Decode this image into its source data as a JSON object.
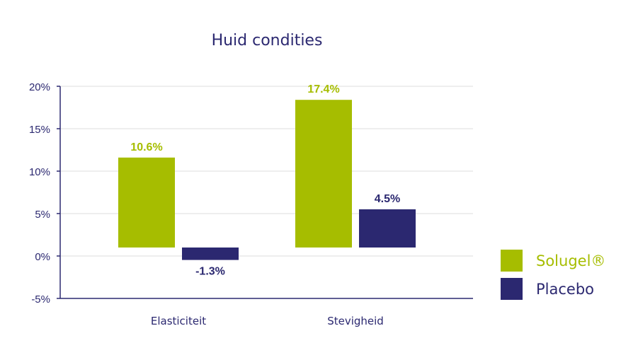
{
  "colors": {
    "solugel": "#a6bd00",
    "placebo": "#2b2870",
    "grid": "#e8e8e8",
    "axis": "#2b2870",
    "title": "#2b2870"
  },
  "chart_data": {
    "type": "bar",
    "title": "Huid condities",
    "xlabel": "",
    "ylabel": "",
    "categories": [
      "Elasticiteit",
      "Stevigheid"
    ],
    "series": [
      {
        "name": "Solugel®",
        "values": [
          10.6,
          17.4
        ],
        "labels": [
          "10.6%",
          "17.4%"
        ]
      },
      {
        "name": "Placebo",
        "values": [
          -1.3,
          4.5
        ],
        "labels": [
          "-1.3%",
          "4.5%"
        ]
      }
    ],
    "ylim": [
      -5,
      20
    ],
    "yticks": [
      -5,
      0,
      5,
      10,
      15,
      20
    ],
    "ytick_labels": [
      "-5%",
      "0%",
      "5%",
      "10%",
      "15%",
      "20%"
    ],
    "grid": true,
    "legend_position": "right"
  }
}
